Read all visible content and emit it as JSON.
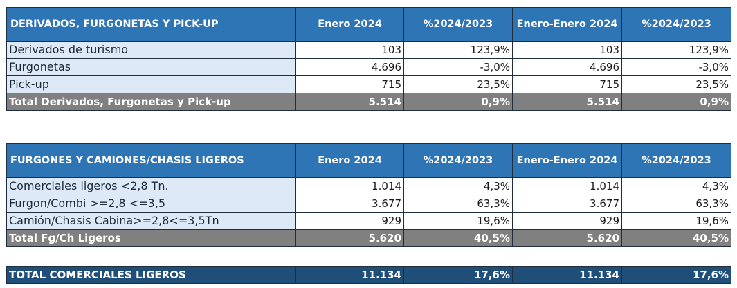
{
  "table1": {
    "header": [
      "DERIVADOS, FURGONETAS Y PICK-UP",
      "Enero 2024",
      "%2024/2023",
      "Enero-Enero 2024",
      "%2024/2023"
    ],
    "rows": [
      [
        "Derivados de turismo",
        "103",
        "123,9%",
        "103",
        "123,9%"
      ],
      [
        "Furgonetas",
        "4.696",
        "-3,0%",
        "4.696",
        "-3,0%"
      ],
      [
        "Pick-up",
        "715",
        "23,5%",
        "715",
        "23,5%"
      ]
    ],
    "total": [
      "Total Derivados, Furgonetas y Pick-up",
      "5.514",
      "0,9%",
      "5.514",
      "0,9%"
    ]
  },
  "table2": {
    "header": [
      "FURGONES Y CAMIONES/CHASIS LIGEROS",
      "Enero 2024",
      "%2024/2023",
      "Enero-Enero 2024",
      "%2024/2023"
    ],
    "rows": [
      [
        "Comerciales ligeros <2,8 Tn.",
        "1.014",
        "4,3%",
        "1.014",
        "4,3%"
      ],
      [
        "Furgon/Combi >=2,8 <=3,5",
        "3.677",
        "63,3%",
        "3.677",
        "63,3%"
      ],
      [
        "Camión/Chasis Cabina>=2,8<=3,5Tn",
        "929",
        "19,6%",
        "929",
        "19,6%"
      ]
    ],
    "total": [
      "Total Fg/Ch Ligeros",
      "5.620",
      "40,5%",
      "5.620",
      "40,5%"
    ]
  },
  "grand_total": [
    "TOTAL COMERCIALES LIGEROS",
    "11.134",
    "17,6%",
    "11.134",
    "17,6%"
  ]
}
